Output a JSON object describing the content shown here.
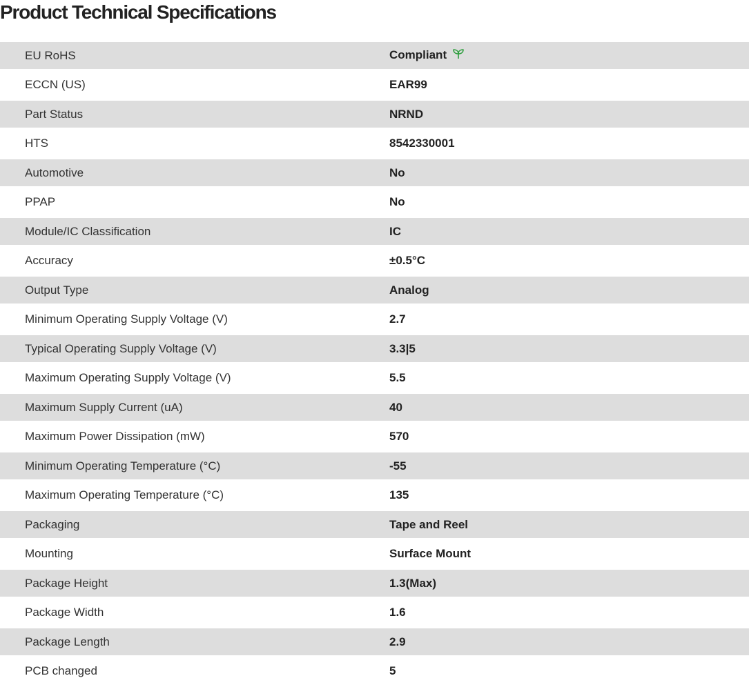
{
  "title": "Product Technical Specifications",
  "accent_color": "#2e9e3e",
  "rows": [
    {
      "label": "EU RoHS",
      "value": "Compliant",
      "icon": "leaf-icon"
    },
    {
      "label": "ECCN (US)",
      "value": "EAR99"
    },
    {
      "label": "Part Status",
      "value": "NRND"
    },
    {
      "label": "HTS",
      "value": "8542330001"
    },
    {
      "label": "Automotive",
      "value": "No"
    },
    {
      "label": "PPAP",
      "value": "No"
    },
    {
      "label": "Module/IC Classification",
      "value": "IC"
    },
    {
      "label": "Accuracy",
      "value": "±0.5°C"
    },
    {
      "label": "Output Type",
      "value": "Analog"
    },
    {
      "label": "Minimum Operating Supply Voltage (V)",
      "value": "2.7"
    },
    {
      "label": "Typical Operating Supply Voltage (V)",
      "value": "3.3|5"
    },
    {
      "label": "Maximum Operating Supply Voltage (V)",
      "value": "5.5"
    },
    {
      "label": "Maximum Supply Current (uA)",
      "value": "40"
    },
    {
      "label": "Maximum Power Dissipation (mW)",
      "value": "570"
    },
    {
      "label": "Minimum Operating Temperature (°C)",
      "value": "-55"
    },
    {
      "label": "Maximum Operating Temperature (°C)",
      "value": "135"
    },
    {
      "label": "Packaging",
      "value": "Tape and Reel"
    },
    {
      "label": "Mounting",
      "value": "Surface Mount"
    },
    {
      "label": "Package Height",
      "value": "1.3(Max)"
    },
    {
      "label": "Package Width",
      "value": "1.6"
    },
    {
      "label": "Package Length",
      "value": "2.9"
    },
    {
      "label": "PCB changed",
      "value": "5"
    }
  ]
}
